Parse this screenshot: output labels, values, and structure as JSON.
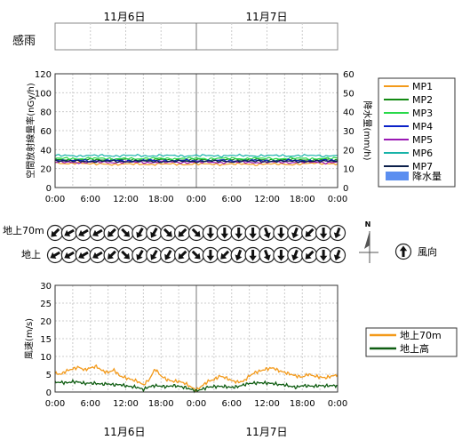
{
  "header": {
    "day1": "11月6日",
    "day2": "11月7日"
  },
  "footer": {
    "day1": "11月6日",
    "day2": "11月7日"
  },
  "rain_sense": {
    "label": "感雨"
  },
  "colors": {
    "MP1": "#f39a1b",
    "MP2": "#138a13",
    "MP3": "#28d94a",
    "MP4": "#0a21c8",
    "MP5": "#9a19b4",
    "MP6": "#17b3a8",
    "MP7": "#0b1f4a",
    "rain": "#5b8ef0",
    "wind70": "#f39a1b",
    "windHigh": "#0f5d12"
  },
  "wind_direction": {
    "row1_label": "地上70m",
    "row2_label": "地上",
    "legend_label": "風向",
    "north_label": "N",
    "row1_deg": [
      225,
      240,
      240,
      240,
      225,
      135,
      210,
      210,
      135,
      225,
      135,
      180,
      180,
      180,
      180,
      160,
      180,
      200,
      225,
      180,
      200
    ],
    "row2_deg": [
      240,
      240,
      240,
      240,
      225,
      135,
      210,
      210,
      210,
      225,
      135,
      180,
      225,
      200,
      180,
      160,
      180,
      200,
      225,
      180,
      200
    ]
  },
  "chart_data": [
    {
      "type": "line",
      "name": "dose-rate",
      "ylabel": "空間放射線量率(nGy/h)",
      "y2label": "降水量(mm/h)",
      "ylim": [
        0,
        120
      ],
      "y2lim": [
        0,
        60
      ],
      "yticks": [
        0,
        20,
        40,
        60,
        80,
        100,
        120
      ],
      "y2ticks": [
        0,
        10,
        20,
        30,
        40,
        50,
        60
      ],
      "xticks": [
        "0:00",
        "6:00",
        "12:00",
        "18:00",
        "0:00",
        "6:00",
        "12:00",
        "18:00",
        "0:00"
      ],
      "x_hours": [
        0,
        2,
        4,
        6,
        8,
        10,
        12,
        14,
        16,
        18,
        20,
        22,
        24,
        26,
        28,
        30,
        32,
        34,
        36,
        38,
        40,
        42,
        44,
        46,
        48
      ],
      "grid": true,
      "legend": "right",
      "rain_legend": "降水量",
      "rain_values": [],
      "series": [
        {
          "name": "MP1",
          "values": [
            26,
            25,
            26,
            25,
            25,
            24,
            25,
            25,
            24,
            25,
            25,
            24,
            25,
            25,
            24,
            25,
            25,
            24,
            25,
            25,
            24,
            25,
            26,
            25,
            25
          ]
        },
        {
          "name": "MP2",
          "values": [
            30,
            29,
            29,
            30,
            29,
            29,
            30,
            29,
            29,
            30,
            29,
            29,
            30,
            29,
            29,
            30,
            29,
            30,
            29,
            29,
            30,
            29,
            29,
            30,
            29
          ]
        },
        {
          "name": "MP3",
          "values": [
            31,
            31,
            30,
            31,
            31,
            30,
            31,
            30,
            31,
            31,
            30,
            31,
            31,
            30,
            31,
            31,
            30,
            31,
            31,
            30,
            31,
            31,
            30,
            31,
            31
          ]
        },
        {
          "name": "MP4",
          "values": [
            29,
            28,
            29,
            28,
            28,
            29,
            28,
            28,
            29,
            28,
            28,
            29,
            28,
            28,
            29,
            28,
            28,
            29,
            28,
            28,
            29,
            28,
            28,
            29,
            28
          ]
        },
        {
          "name": "MP5",
          "values": [
            27,
            27,
            26,
            27,
            27,
            26,
            27,
            27,
            26,
            27,
            27,
            26,
            27,
            27,
            26,
            27,
            27,
            26,
            27,
            27,
            26,
            27,
            27,
            26,
            27
          ]
        },
        {
          "name": "MP6",
          "values": [
            34,
            34,
            33,
            34,
            34,
            33,
            34,
            34,
            33,
            34,
            34,
            33,
            34,
            34,
            33,
            34,
            34,
            33,
            34,
            34,
            33,
            34,
            34,
            33,
            34
          ]
        },
        {
          "name": "MP7",
          "values": [
            28,
            28,
            28,
            27,
            28,
            28,
            27,
            28,
            28,
            27,
            28,
            28,
            27,
            28,
            28,
            27,
            28,
            28,
            27,
            28,
            28,
            27,
            28,
            28,
            28
          ]
        }
      ]
    },
    {
      "type": "line",
      "name": "wind-speed",
      "ylabel": "風速(m/s)",
      "ylim": [
        0,
        30
      ],
      "yticks": [
        0,
        5,
        10,
        15,
        20,
        25,
        30
      ],
      "xticks": [
        "0:00",
        "6:00",
        "12:00",
        "18:00",
        "0:00",
        "6:00",
        "12:00",
        "18:00",
        "0:00"
      ],
      "x_hours": [
        0,
        1,
        2,
        3,
        4,
        5,
        6,
        7,
        8,
        9,
        10,
        11,
        12,
        13,
        14,
        15,
        16,
        17,
        18,
        19,
        20,
        21,
        22,
        23,
        24,
        25,
        26,
        27,
        28,
        29,
        30,
        31,
        32,
        33,
        34,
        35,
        36,
        37,
        38,
        39,
        40,
        41,
        42,
        43,
        44,
        45,
        46,
        47,
        48
      ],
      "grid": true,
      "legend": "right",
      "series": [
        {
          "name": "地上70m",
          "values": [
            5.2,
            5.0,
            6.0,
            6.5,
            7.0,
            6.2,
            6.8,
            7.2,
            6.0,
            5.5,
            6.2,
            4.5,
            4.0,
            3.5,
            3.0,
            2.0,
            3.5,
            6.5,
            4.5,
            3.5,
            3.0,
            3.0,
            2.5,
            1.5,
            0.5,
            1.8,
            3.0,
            3.5,
            4.5,
            4.0,
            3.2,
            2.8,
            3.0,
            4.5,
            5.5,
            6.0,
            6.5,
            6.8,
            6.0,
            5.5,
            5.0,
            4.5,
            4.2,
            5.0,
            4.5,
            4.2,
            4.0,
            4.5,
            4.8
          ]
        },
        {
          "name": "地上高",
          "values": [
            2.8,
            2.7,
            2.6,
            2.9,
            2.8,
            2.4,
            2.5,
            2.4,
            2.2,
            2.3,
            2.0,
            2.1,
            1.7,
            1.5,
            1.3,
            0.7,
            1.5,
            1.8,
            1.6,
            1.5,
            1.8,
            1.6,
            1.3,
            0.8,
            0.3,
            0.8,
            1.4,
            1.5,
            1.6,
            1.5,
            1.3,
            1.5,
            2.0,
            2.4,
            2.5,
            2.6,
            2.5,
            2.4,
            2.1,
            2.0,
            1.6,
            1.3,
            1.8,
            1.7,
            1.6,
            1.8,
            1.7,
            1.8,
            1.8
          ]
        }
      ]
    }
  ]
}
